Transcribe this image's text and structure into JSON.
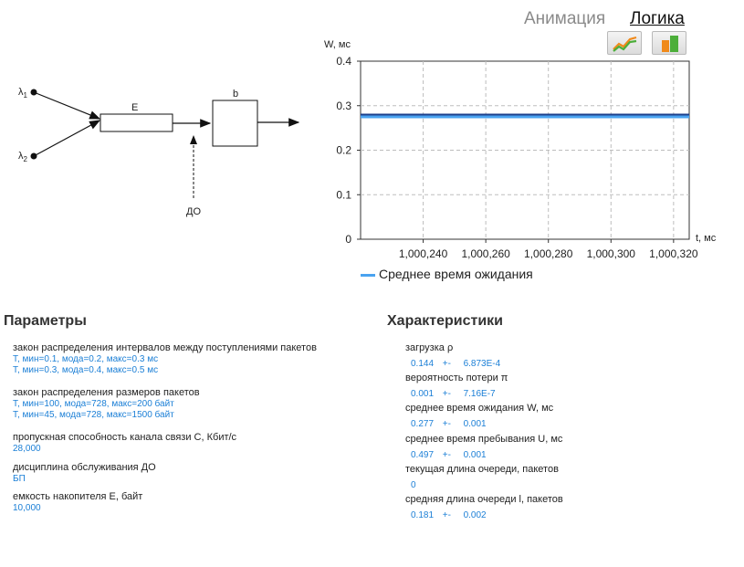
{
  "tabs": {
    "animation": "Анимация",
    "logic": "Логика"
  },
  "toolbar": {
    "line_chart_icon": "line-chart-icon",
    "bar_chart_icon": "bar-chart-icon"
  },
  "diagram": {
    "lambda1": "λ",
    "lambda1_sub": "1",
    "lambda2": "λ",
    "lambda2_sub": "2",
    "buffer_label": "E",
    "server_label": "b",
    "discipline_label": "ДО"
  },
  "chart_data": {
    "type": "line",
    "ylabel": "W, мс",
    "xlabel": "t, мс",
    "ylim": [
      0,
      0.4
    ],
    "yticks": [
      "0.4",
      "0.3",
      "0.2",
      "0.1",
      "0"
    ],
    "xticks": [
      "1,000,240",
      "1,000,260",
      "1,000,280",
      "1,000,300",
      "1,000,320"
    ],
    "grid": true,
    "series": [
      {
        "name": "Среднее время ожидания",
        "color": "#4aa3f0",
        "x": [
          1000220,
          1000240,
          1000260,
          1000280,
          1000300,
          1000320,
          1000325
        ],
        "y": [
          0.277,
          0.277,
          0.277,
          0.277,
          0.277,
          0.277,
          0.277
        ]
      }
    ],
    "legend": "bottom"
  },
  "parameters": {
    "title": "Параметры",
    "items": [
      {
        "label": "закон распределения интервалов между поступлениями пакетов",
        "values": [
          "T, мин=0.1, мода=0.2, макс=0.3 мс",
          "T, мин=0.3, мода=0.4, макс=0.5 мс"
        ]
      },
      {
        "label": "закон распределения размеров пакетов",
        "values": [
          "T, мин=100, мода=728, макс=200 байт",
          "T, мин=45, мода=728, макс=1500 байт"
        ]
      },
      {
        "label": "пропускная способность канала связи C, Кбит/с",
        "values": [
          "28,000"
        ]
      },
      {
        "label": "дисциплина обслуживания ДО",
        "values": [
          "БП"
        ]
      },
      {
        "label": "емкость накопителя E, байт",
        "values": [
          "10,000"
        ]
      }
    ]
  },
  "characteristics": {
    "title": "Характеристики",
    "items": [
      {
        "label": "загрузка ρ",
        "value": "0.144",
        "pm": "+-",
        "err": "6.873E-4"
      },
      {
        "label": "вероятность потери π",
        "value": "0.001",
        "pm": "+-",
        "err": "7.16E-7"
      },
      {
        "label": "среднее время ожидания W, мс",
        "value": "0.277",
        "pm": "+-",
        "err": "0.001"
      },
      {
        "label": "среднее время пребывания U, мс",
        "value": "0.497",
        "pm": "+-",
        "err": "0.001"
      },
      {
        "label": "текущая длина очереди, пакетов",
        "value": "0",
        "pm": "",
        "err": ""
      },
      {
        "label": "средняя длина очереди l, пакетов",
        "value": "0.181",
        "pm": "+-",
        "err": "0.002"
      }
    ]
  }
}
